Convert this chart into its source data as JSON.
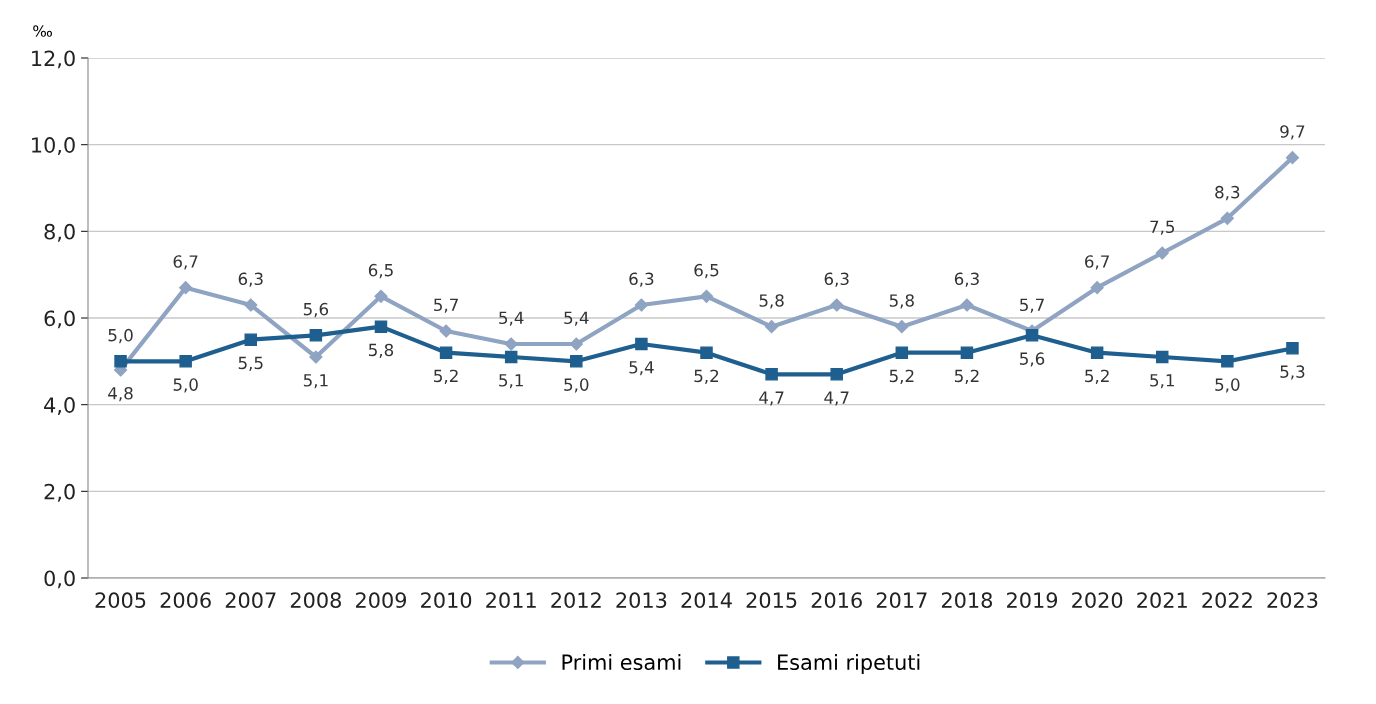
{
  "chart_data": {
    "type": "line",
    "ylabel": "‰",
    "categories": [
      "2005",
      "2006",
      "2007",
      "2008",
      "2009",
      "2010",
      "2011",
      "2012",
      "2013",
      "2014",
      "2015",
      "2016",
      "2017",
      "2018",
      "2019",
      "2020",
      "2021",
      "2022",
      "2023"
    ],
    "series": [
      {
        "name": "Primi esami",
        "color": "#8fa3c2",
        "marker": "diamond",
        "values": [
          4.8,
          6.7,
          6.3,
          5.1,
          6.5,
          5.7,
          5.4,
          5.4,
          6.3,
          6.5,
          5.8,
          6.3,
          5.8,
          6.3,
          5.7,
          6.7,
          7.5,
          8.3,
          9.7
        ],
        "value_labels": [
          "4,8",
          "6,7",
          "6,3",
          "5,1",
          "6,5",
          "5,7",
          "5,4",
          "5,4",
          "6,3",
          "6,5",
          "5,8",
          "6,3",
          "5,8",
          "6,3",
          "5,7",
          "6,7",
          "7,5",
          "8,3",
          "9,7"
        ]
      },
      {
        "name": "Esami ripetuti",
        "color": "#1f5f8f",
        "marker": "square",
        "values": [
          5.0,
          5.0,
          5.5,
          5.6,
          5.8,
          5.2,
          5.1,
          5.0,
          5.4,
          5.2,
          4.7,
          4.7,
          5.2,
          5.2,
          5.6,
          5.2,
          5.1,
          5.0,
          5.3
        ],
        "value_labels": [
          "5,0",
          "5,0",
          "5,5",
          "5,6",
          "5,8",
          "5,2",
          "5,1",
          "5,0",
          "5,4",
          "5,2",
          "4,7",
          "4,7",
          "5,2",
          "5,2",
          "5,6",
          "5,2",
          "5,1",
          "5,0",
          "5,3"
        ]
      }
    ],
    "ylim": [
      0,
      12
    ],
    "yticks": [
      {
        "value": 0,
        "label": "0,0"
      },
      {
        "value": 2,
        "label": "2,0"
      },
      {
        "value": 4,
        "label": "4,0"
      },
      {
        "value": 6,
        "label": "6,0"
      },
      {
        "value": 8,
        "label": "8,0"
      },
      {
        "value": 10,
        "label": "10,0"
      },
      {
        "value": 12,
        "label": "12,0"
      }
    ],
    "grid": "y",
    "legend": "bottom",
    "line_style": "solid"
  }
}
